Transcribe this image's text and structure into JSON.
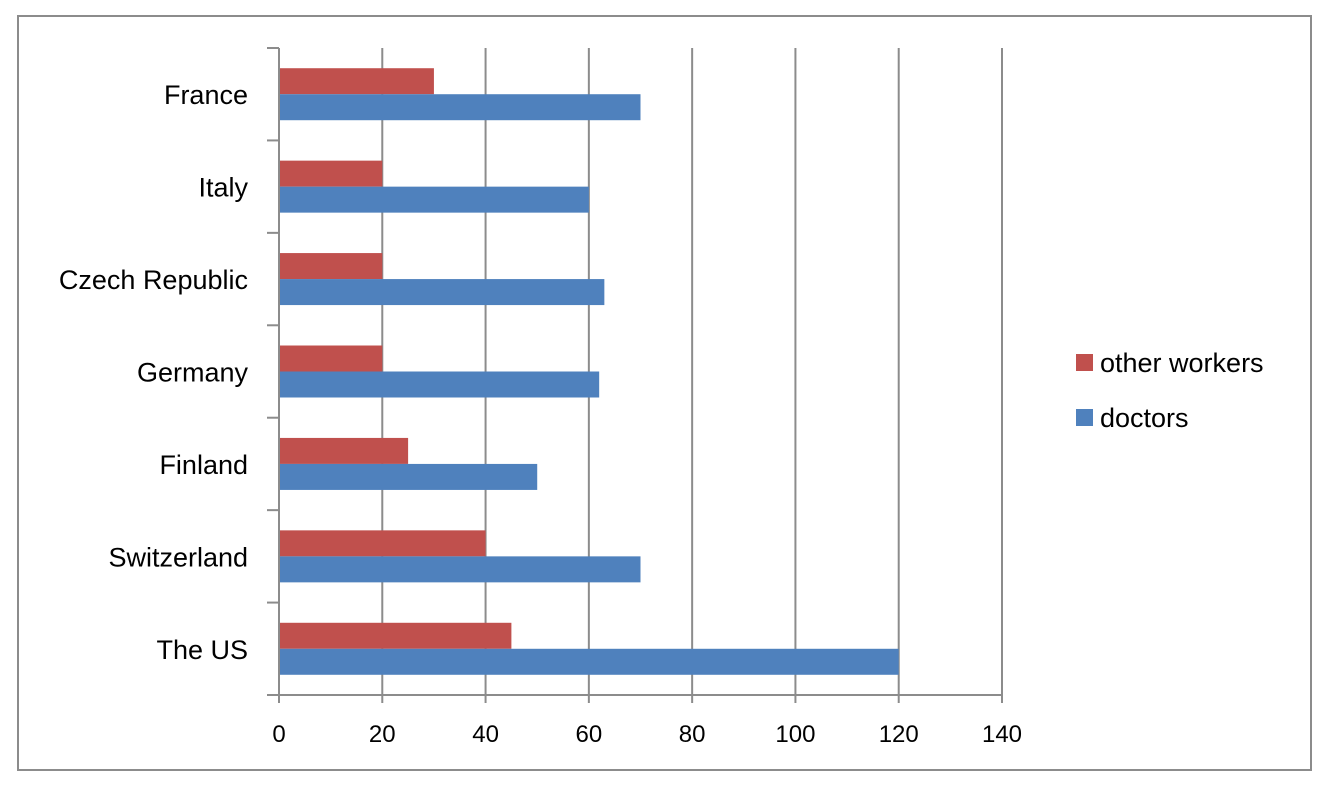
{
  "chart_data": {
    "type": "bar",
    "orientation": "horizontal",
    "categories": [
      "France",
      "Italy",
      "Czech Republic",
      "Germany",
      "Finland",
      "Switzerland",
      "The US"
    ],
    "series": [
      {
        "name": "other workers",
        "color": "#C0504D",
        "values": [
          30,
          20,
          20,
          20,
          25,
          40,
          45
        ]
      },
      {
        "name": "doctors",
        "color": "#4F81BD",
        "values": [
          70,
          60,
          63,
          62,
          50,
          70,
          120
        ]
      }
    ],
    "xlim": [
      0,
      140
    ],
    "xticks": [
      0,
      20,
      40,
      60,
      80,
      100,
      120,
      140
    ],
    "grid": true,
    "legend": "right",
    "title": "",
    "xlabel": "",
    "ylabel": ""
  }
}
